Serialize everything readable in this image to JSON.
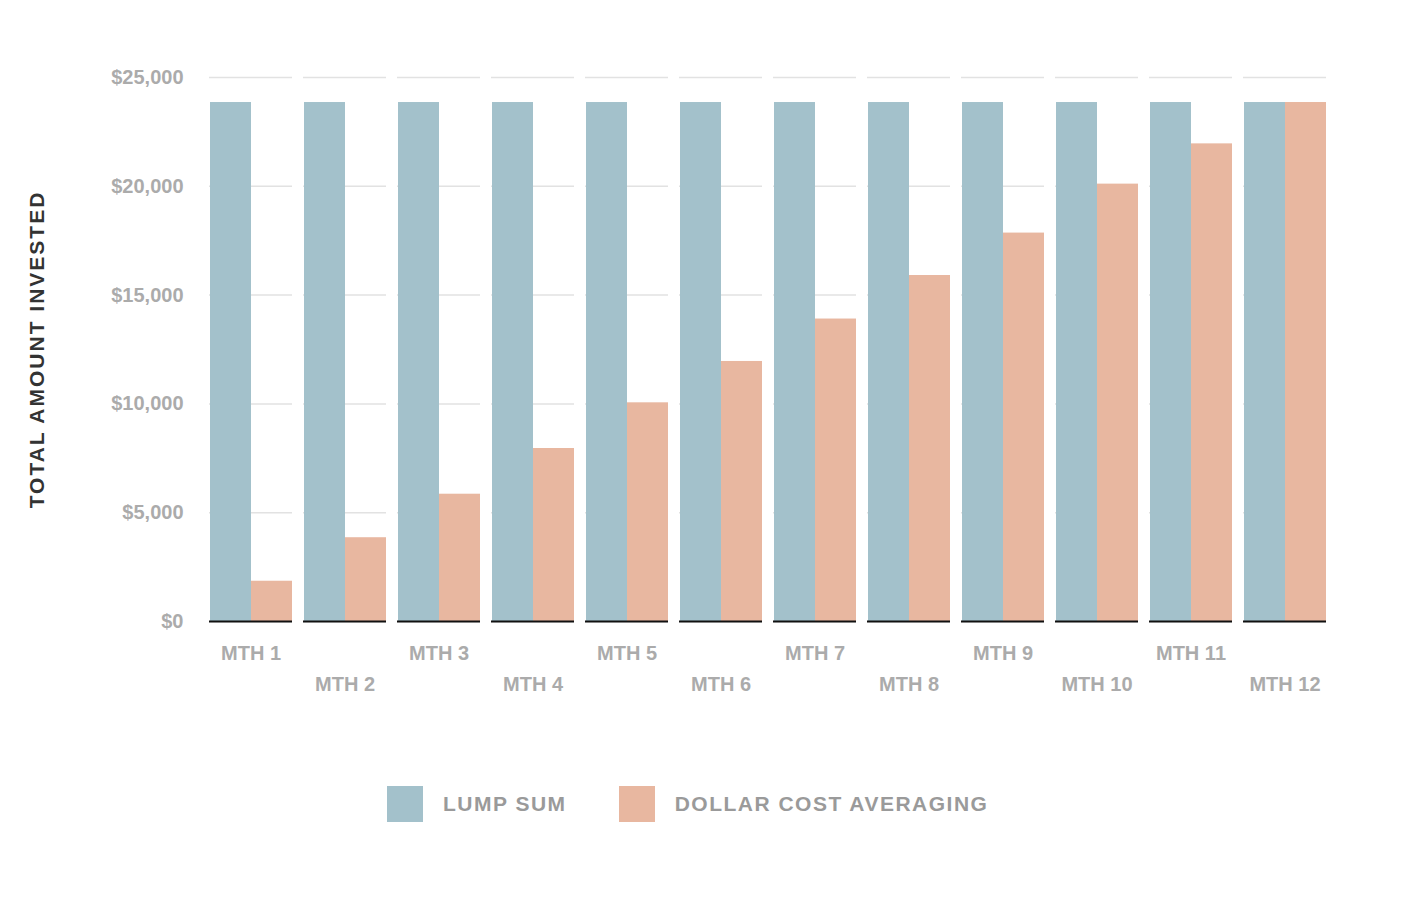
{
  "chart_data": {
    "type": "bar",
    "ylabel": "TOTAL AMOUNT INVESTED",
    "categories": [
      "MTH 1",
      "MTH 2",
      "MTH 3",
      "MTH 4",
      "MTH 5",
      "MTH 6",
      "MTH 7",
      "MTH 8",
      "MTH 9",
      "MTH 10",
      "MTH 11",
      "MTH 12"
    ],
    "series": [
      {
        "name": "LUMP SUM",
        "color": "#a3c1cb",
        "values": [
          23850,
          23850,
          23850,
          23850,
          23850,
          23850,
          23850,
          23850,
          23850,
          23850,
          23850,
          23850
        ]
      },
      {
        "name": "DOLLAR COST AVERAGING",
        "color": "#e8b7a0",
        "values": [
          1850,
          3850,
          5850,
          7950,
          10050,
          11950,
          13900,
          15900,
          17850,
          20100,
          21950,
          23850
        ]
      }
    ],
    "ylim": [
      0,
      25000
    ],
    "yticks": [
      {
        "value": 0,
        "label": "$0"
      },
      {
        "value": 5000,
        "label": "$5,000"
      },
      {
        "value": 10000,
        "label": "$10,000"
      },
      {
        "value": 15000,
        "label": "$15,000"
      },
      {
        "value": 20000,
        "label": "$20,000"
      },
      {
        "value": 25000,
        "label": "$25,000"
      }
    ],
    "grid": true,
    "legend": "bottom"
  }
}
